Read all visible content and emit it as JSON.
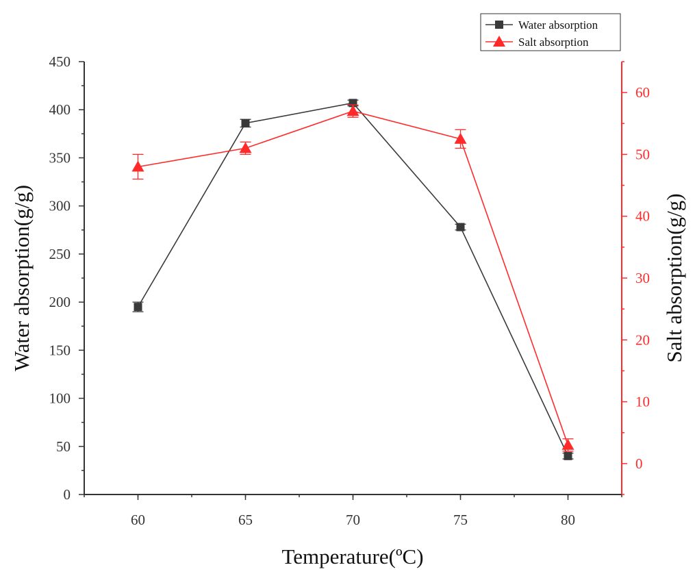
{
  "chart_data": {
    "type": "line",
    "x": [
      60,
      65,
      70,
      75,
      80
    ],
    "xlabel": "Temperature(ºC)",
    "xticks": [
      "60",
      "65",
      "70",
      "75",
      "80"
    ],
    "xlim": [
      57.5,
      82.5
    ],
    "ylabel": "Water absorption(g/g)",
    "ylim": [
      0,
      450
    ],
    "yticks": [
      "0",
      "50",
      "100",
      "150",
      "200",
      "250",
      "300",
      "350",
      "400",
      "450"
    ],
    "y2label": "Salt absorption(g/g)",
    "y2lim": [
      -5,
      65
    ],
    "y2ticks": [
      "0",
      "10",
      "20",
      "30",
      "40",
      "50",
      "60"
    ],
    "legend_position": "top-right",
    "series": [
      {
        "name": "Water absorption",
        "axis": "left",
        "marker": "square",
        "color": "#3a3a3a",
        "values": [
          195,
          386,
          407,
          278,
          40
        ],
        "errors": [
          5,
          4,
          3,
          3,
          3
        ]
      },
      {
        "name": "Salt absorption",
        "axis": "right",
        "marker": "triangle",
        "color": "#ff2a2a",
        "values": [
          48,
          51,
          57,
          52.5,
          3
        ],
        "errors": [
          2,
          1,
          1,
          1.5,
          1
        ]
      }
    ]
  }
}
